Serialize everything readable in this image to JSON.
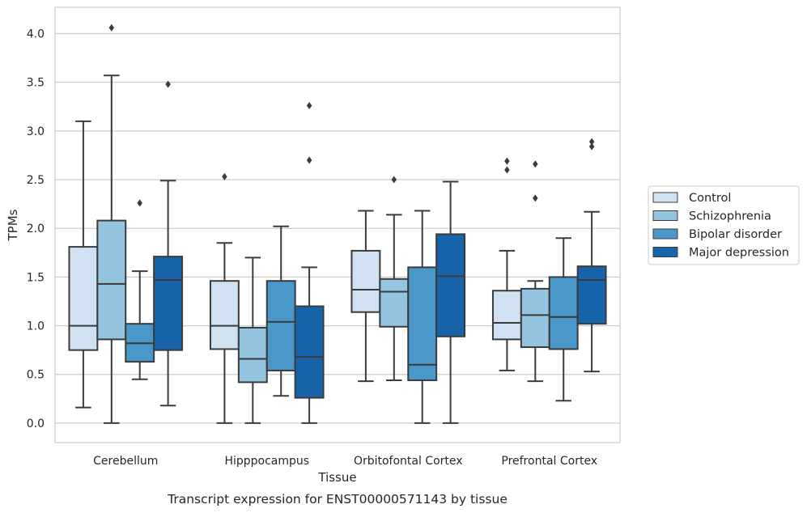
{
  "chart_data": {
    "type": "box",
    "title": "",
    "caption": "Transcript expression for ENST00000571143 by tissue",
    "xlabel": "Tissue",
    "ylabel": "TPMs",
    "ylim": [
      -0.2,
      4.27
    ],
    "yticks": [
      "0.0",
      "0.5",
      "1.0",
      "1.5",
      "2.0",
      "2.5",
      "3.0",
      "3.5",
      "4.0"
    ],
    "grid": "horizontal",
    "legend_position": "right",
    "categories": [
      "Cerebellum",
      "Hipppocampus",
      "Orbitofontal Cortex",
      "Prefrontal Cortex"
    ],
    "series": [
      {
        "name": "Control",
        "color": "#d0e1f2",
        "boxes": [
          {
            "whisker_low": 0.16,
            "q1": 0.75,
            "median": 1.0,
            "q3": 1.81,
            "whisker_high": 3.1,
            "outliers": []
          },
          {
            "whisker_low": 0.0,
            "q1": 0.76,
            "median": 1.0,
            "q3": 1.46,
            "whisker_high": 1.85,
            "outliers": [
              2.53
            ]
          },
          {
            "whisker_low": 0.43,
            "q1": 1.14,
            "median": 1.37,
            "q3": 1.77,
            "whisker_high": 2.18,
            "outliers": []
          },
          {
            "whisker_low": 0.54,
            "q1": 0.86,
            "median": 1.03,
            "q3": 1.36,
            "whisker_high": 1.77,
            "outliers": [
              2.6,
              2.69
            ]
          }
        ]
      },
      {
        "name": "Schizophrenia",
        "color": "#94c4df",
        "boxes": [
          {
            "whisker_low": 0.0,
            "q1": 0.86,
            "median": 1.43,
            "q3": 2.08,
            "whisker_high": 3.57,
            "outliers": [
              4.06
            ]
          },
          {
            "whisker_low": 0.0,
            "q1": 0.42,
            "median": 0.66,
            "q3": 0.98,
            "whisker_high": 1.7,
            "outliers": []
          },
          {
            "whisker_low": 0.44,
            "q1": 0.99,
            "median": 1.35,
            "q3": 1.48,
            "whisker_high": 2.14,
            "outliers": [
              2.5
            ]
          },
          {
            "whisker_low": 0.43,
            "q1": 0.78,
            "median": 1.11,
            "q3": 1.38,
            "whisker_high": 1.46,
            "outliers": [
              2.31,
              2.66
            ]
          }
        ]
      },
      {
        "name": "Bipolar disorder",
        "color": "#4a98c9",
        "boxes": [
          {
            "whisker_low": 0.45,
            "q1": 0.63,
            "median": 0.82,
            "q3": 1.02,
            "whisker_high": 1.56,
            "outliers": [
              2.26
            ]
          },
          {
            "whisker_low": 0.28,
            "q1": 0.54,
            "median": 1.04,
            "q3": 1.46,
            "whisker_high": 2.02,
            "outliers": []
          },
          {
            "whisker_low": 0.0,
            "q1": 0.44,
            "median": 0.6,
            "q3": 1.6,
            "whisker_high": 2.18,
            "outliers": []
          },
          {
            "whisker_low": 0.23,
            "q1": 0.76,
            "median": 1.09,
            "q3": 1.5,
            "whisker_high": 1.9,
            "outliers": []
          }
        ]
      },
      {
        "name": "Major depression",
        "color": "#1764ab",
        "boxes": [
          {
            "whisker_low": 0.18,
            "q1": 0.75,
            "median": 1.47,
            "q3": 1.71,
            "whisker_high": 2.49,
            "outliers": [
              3.48
            ]
          },
          {
            "whisker_low": 0.0,
            "q1": 0.26,
            "median": 0.68,
            "q3": 1.2,
            "whisker_high": 1.6,
            "outliers": [
              2.7,
              3.26
            ]
          },
          {
            "whisker_low": 0.0,
            "q1": 0.89,
            "median": 1.51,
            "q3": 1.94,
            "whisker_high": 2.48,
            "outliers": []
          },
          {
            "whisker_low": 0.53,
            "q1": 1.02,
            "median": 1.47,
            "q3": 1.61,
            "whisker_high": 2.17,
            "outliers": [
              2.84,
              2.89
            ]
          }
        ]
      }
    ]
  }
}
